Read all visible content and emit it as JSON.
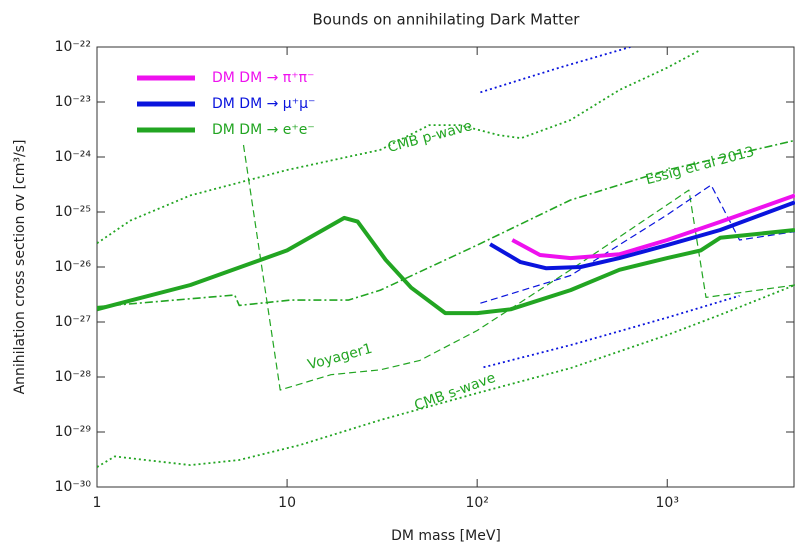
{
  "chart_data": {
    "type": "line",
    "title": "Bounds on annihilating Dark Matter",
    "xlabel": "DM mass [MeV]",
    "ylabel": "Annihilation cross section σv [cm³/s]",
    "xscale": "log",
    "yscale": "log",
    "xlim": [
      1,
      4700
    ],
    "ylim": [
      1e-30,
      1e-22
    ],
    "xticks": [
      1,
      10,
      {
        "value": 100,
        "label": "10²"
      },
      {
        "value": 1000,
        "label": "10³"
      }
    ],
    "yticks": [
      {
        "value": 1e-30,
        "label": "10⁻³⁰"
      },
      {
        "value": 1e-29,
        "label": "10⁻²⁹"
      },
      {
        "value": 1e-28,
        "label": "10⁻²⁸"
      },
      {
        "value": 1e-27,
        "label": "10⁻²⁷"
      },
      {
        "value": 1e-26,
        "label": "10⁻²⁶"
      },
      {
        "value": 1e-25,
        "label": "10⁻²⁵"
      },
      {
        "value": 1e-24,
        "label": "10⁻²⁴"
      },
      {
        "value": 1e-23,
        "label": "10⁻²³"
      },
      {
        "value": 1e-22,
        "label": "10⁻²²"
      }
    ],
    "legend": "upper left",
    "series": [
      {
        "name": "DM DM → π⁺π⁻",
        "color": "#ee11ee",
        "style": "thick",
        "x": [
          153,
          214,
          310,
          560,
          1000,
          1900,
          4700
        ],
        "values": [
          3.1e-26,
          1.65e-26,
          1.45e-26,
          1.7e-26,
          3.1e-26,
          6.6e-26,
          2e-25
        ]
      },
      {
        "name": "DM DM → μ⁺μ⁻",
        "color": "#0a14dd",
        "style": "thick",
        "x": [
          117,
          169,
          230,
          350,
          560,
          1000,
          1900,
          4700
        ],
        "values": [
          2.6e-26,
          1.23e-26,
          9.5e-27,
          1e-26,
          1.45e-26,
          2.5e-26,
          4.7e-26,
          1.5e-25
        ]
      },
      {
        "name": "DM DM → e⁺e⁻",
        "color": "#22a522",
        "style": "thick",
        "x": [
          1,
          3.1,
          10,
          20,
          23.5,
          33,
          45,
          68,
          100,
          150,
          310,
          560,
          1000,
          1500,
          1900,
          4700
        ],
        "values": [
          1.7e-27,
          4.7e-27,
          2e-26,
          7.8e-26,
          6.7e-26,
          1.35e-26,
          4.2e-27,
          1.45e-27,
          1.45e-27,
          1.7e-27,
          3.8e-27,
          8.9e-27,
          1.45e-26,
          2e-26,
          3.4e-26,
          4.7e-26
        ]
      },
      {
        "name": "CMB p-wave",
        "color": "#22a522",
        "style": "dotted",
        "x": [
          1,
          1.5,
          3.1,
          10,
          31,
          56,
          81,
          130,
          170,
          310,
          560,
          1000,
          1500
        ],
        "values": [
          2.7e-26,
          7e-26,
          2e-25,
          5.8e-25,
          1.35e-24,
          3.8e-24,
          3.8e-24,
          2.5e-24,
          2.2e-24,
          4.7e-24,
          1.65e-23,
          4.2e-23,
          8.9e-23
        ]
      },
      {
        "color": "#0a14dd",
        "style": "dotted",
        "x": [
          104,
          270,
          640
        ],
        "values": [
          1.5e-23,
          4.2e-23,
          1e-22
        ]
      },
      {
        "name": "CMB s-wave",
        "color": "#22a522",
        "style": "dotted",
        "x": [
          1,
          1.24,
          1.8,
          3.1,
          5.6,
          11.7,
          31,
          100,
          310,
          1000,
          1900,
          4700
        ],
        "values": [
          2.3e-30,
          3.6e-30,
          3.1e-30,
          2.5e-30,
          3.1e-30,
          5.8e-30,
          1.65e-29,
          5.1e-29,
          1.45e-28,
          5.8e-28,
          1.35e-27,
          4.7e-27
        ]
      },
      {
        "color": "#0a14dd",
        "style": "dotted",
        "x": [
          108,
          310,
          1000,
          2400
        ],
        "values": [
          1.5e-28,
          3.8e-28,
          1.2e-27,
          3e-27
        ]
      },
      {
        "name": "Essig et al 2013",
        "color": "#22a522",
        "style": "dashdot",
        "x": [
          1,
          5.3,
          5.6,
          10.4,
          21,
          31,
          100,
          310,
          1000,
          4700
        ],
        "values": [
          1.9e-27,
          3.1e-27,
          2e-27,
          2.5e-27,
          2.5e-27,
          3.8e-27,
          2.5e-26,
          1.65e-25,
          5.8e-25,
          2e-24
        ]
      },
      {
        "name": "Voyager1",
        "color": "#22a522",
        "style": "dashed",
        "x": [
          5.9,
          9.2,
          17,
          31,
          50,
          100,
          310,
          1000,
          1300,
          1600,
          4700
        ],
        "values": [
          1.65e-24,
          5.8e-29,
          1.1e-28,
          1.35e-28,
          2e-28,
          7e-28,
          8.9e-27,
          1.35e-25,
          2.5e-25,
          2.8e-27,
          4.7e-27
        ]
      },
      {
        "color": "#0a14dd",
        "style": "dashed",
        "x": [
          104,
          310,
          1000,
          1700,
          2400,
          4700
        ],
        "values": [
          2.2e-27,
          7e-27,
          8.9e-26,
          3.1e-25,
          3.1e-26,
          4.4e-26
        ]
      }
    ]
  }
}
